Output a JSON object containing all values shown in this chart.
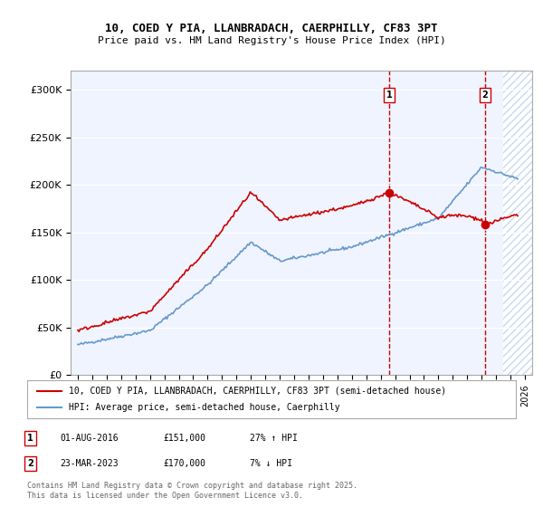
{
  "title1": "10, COED Y PIA, LLANBRADACH, CAERPHILLY, CF83 3PT",
  "title2": "Price paid vs. HM Land Registry's House Price Index (HPI)",
  "ylabel": "",
  "ylim": [
    0,
    320000
  ],
  "yticks": [
    0,
    50000,
    100000,
    150000,
    200000,
    250000,
    300000
  ],
  "ytick_labels": [
    "£0",
    "£50K",
    "£100K",
    "£150K",
    "£200K",
    "£250K",
    "£300K"
  ],
  "xstart_year": 1995,
  "xend_year": 2026,
  "legend1": "10, COED Y PIA, LLANBRADACH, CAERPHILLY, CF83 3PT (semi-detached house)",
  "legend2": "HPI: Average price, semi-detached house, Caerphilly",
  "purchase1_date": "01-AUG-2016",
  "purchase1_price": 151000,
  "purchase1_hpi": "27% ↑ HPI",
  "purchase2_date": "23-MAR-2023",
  "purchase2_price": 170000,
  "purchase2_hpi": "7% ↓ HPI",
  "marker1_year": 2016.58,
  "marker2_year": 2023.23,
  "footer": "Contains HM Land Registry data © Crown copyright and database right 2025.\nThis data is licensed under the Open Government Licence v3.0.",
  "bg_color": "#f0f4ff",
  "hatch_color": "#c8d8f0",
  "line1_color": "#cc0000",
  "line2_color": "#6699cc",
  "dashed_line_color": "#cc0000",
  "marker1_color": "#cc0000",
  "marker2_color": "#cc0000"
}
